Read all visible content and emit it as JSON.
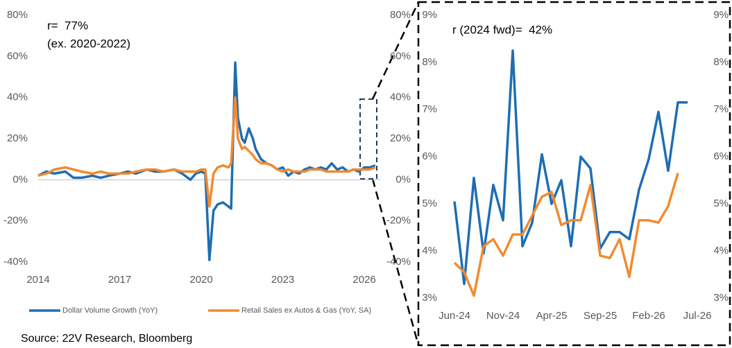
{
  "chart_data": [
    {
      "type": "line",
      "annotations": [
        "r=  77%",
        "(ex. 2020-2022)"
      ],
      "source": "Source: 22V Research, Bloomberg",
      "legend_position": "bottom",
      "grid": false,
      "x": [
        2014.0,
        2014.3,
        2014.6,
        2015.0,
        2015.3,
        2015.6,
        2016.0,
        2016.3,
        2016.6,
        2017.0,
        2017.3,
        2017.6,
        2018.0,
        2018.3,
        2018.6,
        2019.0,
        2019.3,
        2019.6,
        2019.8,
        2020.0,
        2020.15,
        2020.3,
        2020.45,
        2020.6,
        2020.8,
        2021.0,
        2021.1,
        2021.25,
        2021.35,
        2021.5,
        2021.6,
        2021.75,
        2021.9,
        2022.0,
        2022.2,
        2022.4,
        2022.6,
        2022.8,
        2023.0,
        2023.2,
        2023.4,
        2023.6,
        2023.8,
        2024.0,
        2024.2,
        2024.4,
        2024.6,
        2024.8,
        2025.0,
        2025.2,
        2025.4,
        2025.6,
        2025.8,
        2026.0,
        2026.2,
        2026.4
      ],
      "xlim": [
        2014,
        2026.6
      ],
      "xticks": [
        2014,
        2017,
        2020,
        2023,
        2026
      ],
      "ylim": [
        -40,
        80
      ],
      "yticks": [
        {
          "value": -40,
          "label": "-40%"
        },
        {
          "value": -20,
          "label": "-20%"
        },
        {
          "value": 0,
          "label": "0%"
        },
        {
          "value": 20,
          "label": "20%"
        },
        {
          "value": 40,
          "label": "40%"
        },
        {
          "value": 60,
          "label": "60%"
        },
        {
          "value": 80,
          "label": "80%"
        }
      ],
      "y2lim": [
        -40,
        80
      ],
      "y2ticks": [
        {
          "value": -40,
          "label": "-40%"
        },
        {
          "value": -20,
          "label": "-20%"
        },
        {
          "value": 0,
          "label": "0%"
        },
        {
          "value": 20,
          "label": "20%"
        },
        {
          "value": 40,
          "label": "40%"
        },
        {
          "value": 60,
          "label": "60%"
        },
        {
          "value": 80,
          "label": "80%"
        }
      ],
      "series": [
        {
          "name": "Dollar Volume Growth (YoY)",
          "color": "#1f6db3",
          "values": [
            2,
            4,
            3,
            4,
            1,
            1,
            2,
            1,
            2,
            3,
            4,
            3,
            5,
            4,
            4,
            5,
            3,
            0,
            3,
            4,
            3,
            -39,
            -15,
            -12,
            -11,
            -13,
            -14,
            57,
            30,
            20,
            18,
            25,
            20,
            15,
            10,
            8,
            7,
            5,
            6,
            2,
            4,
            3,
            5,
            6,
            5,
            6,
            5,
            8,
            5,
            6,
            4,
            5,
            4,
            6,
            6,
            7
          ]
        },
        {
          "name": "Retail Sales ex Autos & Gas (YoY, SA)",
          "color": "#f28a2e",
          "values": [
            2,
            3,
            5,
            6,
            5,
            4,
            3,
            4,
            3,
            3,
            3,
            4,
            5,
            5,
            4,
            5,
            4,
            4,
            4,
            5,
            5,
            -13,
            3,
            6,
            7,
            6,
            8,
            40,
            20,
            15,
            16,
            14,
            12,
            10,
            8,
            8,
            7,
            5,
            4,
            5,
            4,
            4,
            4,
            5,
            5,
            5,
            4,
            4,
            4,
            4,
            4,
            5,
            5,
            5,
            5,
            6
          ]
        }
      ]
    },
    {
      "type": "line",
      "annotations": [
        "r (2024 fwd)=  42%"
      ],
      "grid": false,
      "categories": [
        "Jun-24",
        null,
        null,
        null,
        null,
        "Nov-24",
        null,
        null,
        null,
        null,
        "Apr-25",
        null,
        null,
        null,
        null,
        "Sep-25",
        null,
        null,
        null,
        null,
        "Feb-26",
        null,
        null,
        null,
        null,
        "Jul-26"
      ],
      "ylim": [
        3,
        9
      ],
      "yticks": [
        {
          "value": 3,
          "label": "3%"
        },
        {
          "value": 4,
          "label": "4%"
        },
        {
          "value": 5,
          "label": "5%"
        },
        {
          "value": 6,
          "label": "6%"
        },
        {
          "value": 7,
          "label": "7%"
        },
        {
          "value": 8,
          "label": "8%"
        },
        {
          "value": 9,
          "label": "9%"
        }
      ],
      "y2lim": [
        3,
        9
      ],
      "y2ticks": [
        {
          "value": 3,
          "label": "3%"
        },
        {
          "value": 4,
          "label": "4%"
        },
        {
          "value": 5,
          "label": "5%"
        },
        {
          "value": 6,
          "label": "6%"
        },
        {
          "value": 7,
          "label": "7%"
        },
        {
          "value": 8,
          "label": "8%"
        },
        {
          "value": 9,
          "label": "9%"
        }
      ],
      "series": [
        {
          "name": "Dollar Volume Growth (YoY)",
          "color": "#1f6db3",
          "values": [
            5.05,
            3.3,
            5.55,
            3.95,
            5.4,
            4.65,
            8.25,
            4.1,
            4.6,
            6.05,
            5.0,
            5.5,
            4.1,
            6.0,
            5.75,
            4.05,
            4.4,
            4.4,
            4.25,
            5.3,
            5.95,
            6.95,
            5.7,
            7.15,
            7.15,
            null
          ]
        },
        {
          "name": "Retail Sales ex Autos & Gas (YoY, SA)",
          "color": "#f28a2e",
          "values": [
            3.75,
            3.55,
            3.05,
            4.1,
            4.25,
            3.9,
            4.35,
            4.35,
            4.75,
            5.15,
            5.25,
            4.55,
            4.65,
            4.65,
            5.4,
            3.9,
            3.85,
            4.25,
            3.45,
            4.65,
            4.65,
            4.6,
            4.95,
            5.65,
            null,
            null
          ]
        }
      ]
    }
  ]
}
